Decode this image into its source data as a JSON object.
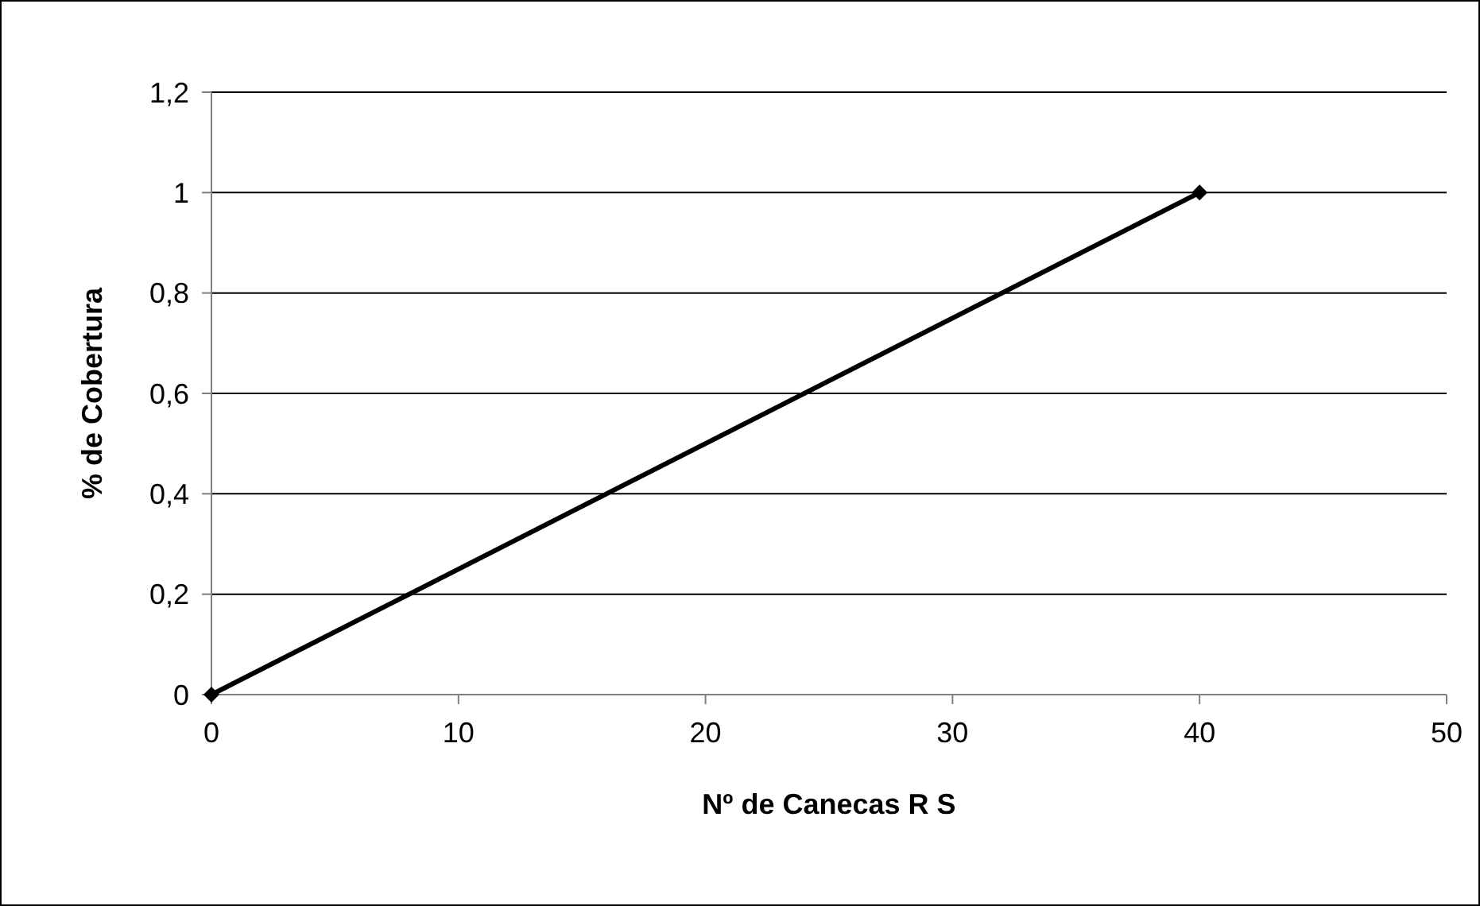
{
  "chart_data": {
    "type": "line",
    "xlabel": "Nº de Canecas R S",
    "ylabel": "% de Cobertura",
    "x": [
      0,
      40
    ],
    "series": [
      {
        "color": "#000000",
        "values": [
          0,
          1
        ]
      }
    ],
    "xlim": [
      0,
      50
    ],
    "xticks": [
      0,
      10,
      20,
      30,
      40,
      50
    ],
    "ylim": [
      0,
      1.2
    ],
    "yticks": [
      0,
      {
        "value": 0.2,
        "label": "0,2"
      },
      {
        "value": 0.4,
        "label": "0,4"
      },
      {
        "value": 0.6,
        "label": "0,6"
      },
      {
        "value": 0.8,
        "label": "0,8"
      },
      1,
      {
        "value": 1.2,
        "label": "1,2"
      }
    ],
    "grid": "y",
    "marker": "diamond",
    "line_style": "solid"
  }
}
